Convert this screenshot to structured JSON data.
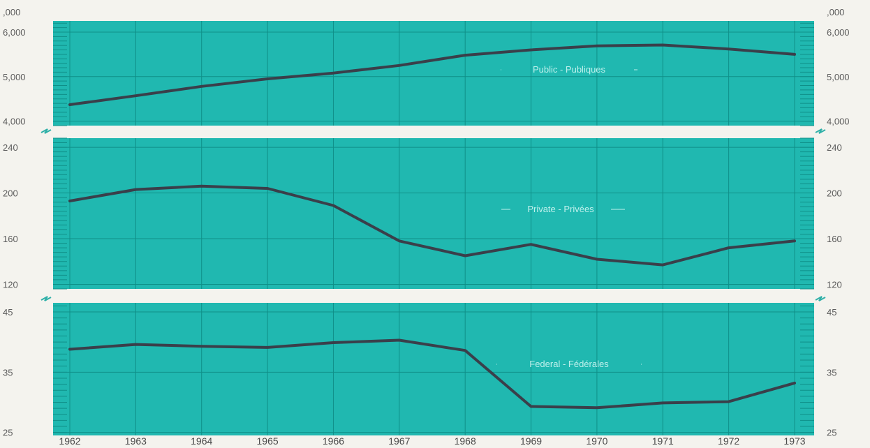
{
  "colors": {
    "panel": "#20b8b0",
    "grid": "#0f8f88",
    "line": "#3a3f4a",
    "label": "#bff0ec",
    "text": "#5c5c5c",
    "background": "#f4f3ee"
  },
  "chart_data": [
    {
      "type": "line",
      "unit_label": ",000",
      "x": [
        1962,
        1963,
        1964,
        1965,
        1966,
        1967,
        1968,
        1969,
        1970,
        1971,
        1972,
        1973
      ],
      "series": [
        {
          "name": "Public - Publiques",
          "values": [
            4370,
            4570,
            4780,
            4950,
            5080,
            5250,
            5480,
            5600,
            5690,
            5710,
            5620,
            5500
          ]
        }
      ],
      "ylim": [
        3900,
        6250
      ],
      "yticks": [
        4000,
        5000,
        6000
      ],
      "ytick_labels_left": [
        "4,000",
        "5,000",
        "6,000"
      ],
      "ytick_labels_right": [
        "4,000",
        "5,000",
        "6,000"
      ],
      "grid": true
    },
    {
      "type": "line",
      "x": [
        1962,
        1963,
        1964,
        1965,
        1966,
        1967,
        1968,
        1969,
        1970,
        1971,
        1972,
        1973
      ],
      "series": [
        {
          "name": "Private - Privées",
          "values": [
            193,
            203,
            206,
            204,
            189,
            158,
            145,
            155,
            142,
            137,
            152,
            158
          ]
        }
      ],
      "ylim": [
        116,
        248
      ],
      "yticks": [
        120,
        160,
        200,
        240
      ],
      "ytick_labels_left": [
        "120",
        "160",
        "200",
        "240"
      ],
      "ytick_labels_right": [
        "120",
        "160",
        "200",
        "240"
      ],
      "grid": true
    },
    {
      "type": "line",
      "x": [
        1962,
        1963,
        1964,
        1965,
        1966,
        1967,
        1968,
        1969,
        1970,
        1971,
        1972,
        1973
      ],
      "series": [
        {
          "name": "Federal - Fédérales",
          "values": [
            38.8,
            39.6,
            39.3,
            39.1,
            39.9,
            40.3,
            38.6,
            29.3,
            29.1,
            29.9,
            30.1,
            33.2
          ]
        }
      ],
      "ylim": [
        24.5,
        46.5
      ],
      "yticks": [
        25,
        35,
        45
      ],
      "ytick_labels_left": [
        "25",
        "35",
        "45"
      ],
      "ytick_labels_right": [
        "25",
        "35",
        "45"
      ],
      "grid": true
    }
  ]
}
